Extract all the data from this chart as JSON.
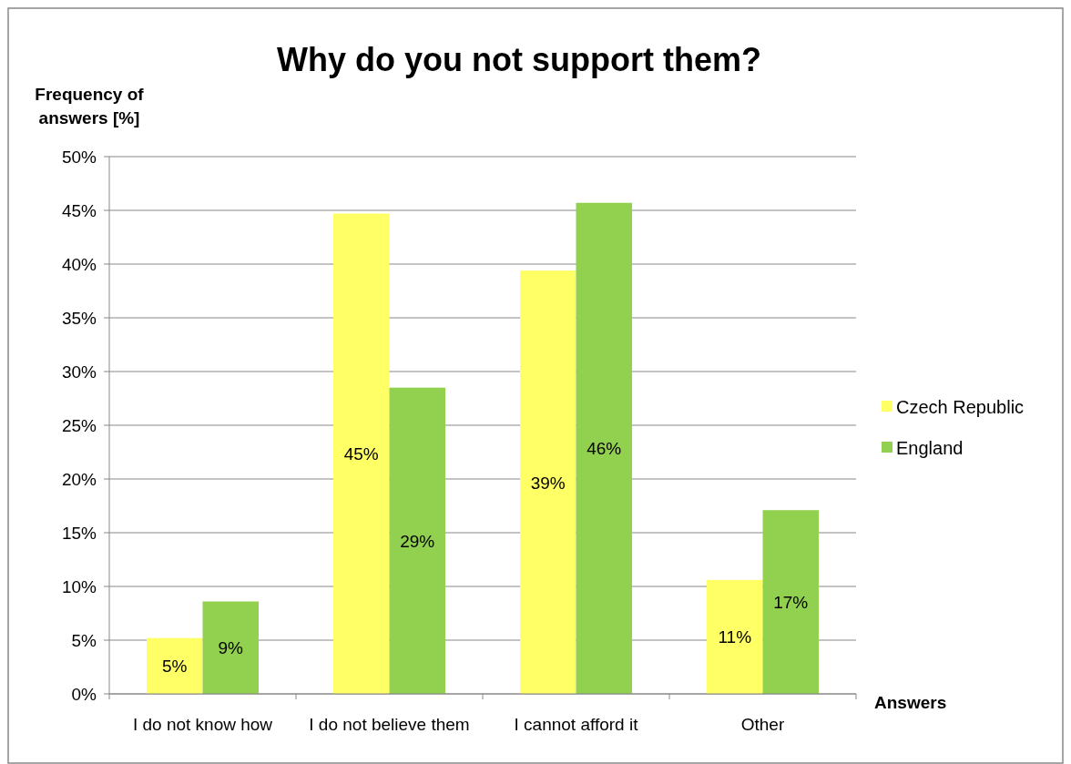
{
  "chart_data": {
    "type": "bar",
    "title": "Why do you not support them?",
    "xlabel": "Answers",
    "ylabel": "Frequency of answers [%]",
    "categories": [
      "I do not know how",
      "I do not believe them",
      "I cannot afford it",
      "Other"
    ],
    "series": [
      {
        "name": "Czech Republic",
        "color": "#ffff66",
        "values": [
          5.2,
          44.7,
          39.4,
          10.6
        ],
        "value_labels": [
          "5%",
          "45%",
          "39%",
          "11%"
        ]
      },
      {
        "name": "England",
        "color": "#92d050",
        "values": [
          8.6,
          28.5,
          45.7,
          17.1
        ],
        "value_labels": [
          "9%",
          "29%",
          "46%",
          "17%"
        ]
      }
    ],
    "ylim": [
      0,
      50
    ],
    "yticks": [
      {
        "value": 0,
        "label": "0%"
      },
      {
        "value": 5,
        "label": "5%"
      },
      {
        "value": 10,
        "label": "10%"
      },
      {
        "value": 15,
        "label": "15%"
      },
      {
        "value": 20,
        "label": "20%"
      },
      {
        "value": 25,
        "label": "25%"
      },
      {
        "value": 30,
        "label": "30%"
      },
      {
        "value": 35,
        "label": "35%"
      },
      {
        "value": 40,
        "label": "40%"
      },
      {
        "value": 45,
        "label": "45%"
      },
      {
        "value": 50,
        "label": "50%"
      }
    ],
    "grid": "y",
    "legend": "right"
  }
}
